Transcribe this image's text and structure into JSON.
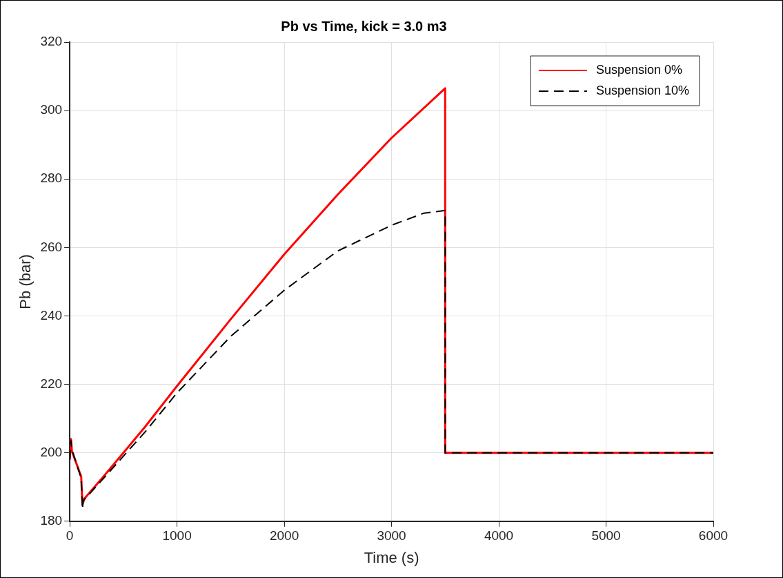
{
  "chart_data": {
    "type": "line",
    "title": "Pb vs Time, kick = 3.0 m3",
    "xlabel": "Time (s)",
    "ylabel": "Pb (bar)",
    "xlim": [
      0,
      6000
    ],
    "xticks": [
      0,
      1000,
      2000,
      3000,
      4000,
      5000,
      6000
    ],
    "ylim": [
      180,
      320
    ],
    "yticks": [
      180,
      200,
      220,
      240,
      260,
      280,
      300,
      320
    ],
    "grid": true,
    "legend": "top right",
    "marker": "none",
    "series": [
      {
        "name": "Suspension 0%",
        "color": "#ff0000",
        "line_style": "solid",
        "x": [
          0,
          12,
          20,
          107,
          115,
          120,
          137,
          300,
          500,
          700,
          1000,
          1500,
          2000,
          2500,
          3000,
          3500,
          3500,
          6000
        ],
        "values": [
          198,
          204,
          200.5,
          193,
          187,
          185,
          186.6,
          192.5,
          200,
          207.5,
          219.5,
          239,
          258,
          275.5,
          292,
          306.5,
          200,
          200
        ]
      },
      {
        "name": "Suspension 10%",
        "color": "#000000",
        "line_style": "dashed",
        "x": [
          0,
          12,
          20,
          107,
          118,
          125,
          140,
          300,
          500,
          700,
          1000,
          1500,
          2000,
          2500,
          3000,
          3300,
          3500,
          3500,
          6000
        ],
        "values": [
          198,
          203.5,
          201,
          192.5,
          183.5,
          186,
          186.5,
          192,
          199,
          206,
          217.5,
          234,
          247.5,
          259,
          266.5,
          270,
          270.8,
          200,
          200
        ]
      }
    ]
  }
}
